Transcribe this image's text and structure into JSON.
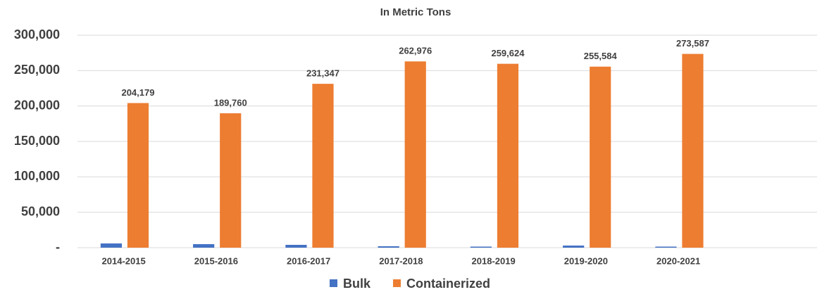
{
  "chart_data": {
    "type": "bar",
    "title": "In Metric Tons",
    "categories": [
      "2014-2015",
      "2015-2016",
      "2016-2017",
      "2017-2018",
      "2018-2019",
      "2019-2020",
      "2020-2021",
      null
    ],
    "series": [
      {
        "name": "Bulk",
        "color": "#4472c4",
        "values": [
          6000,
          5000,
          4000,
          2000,
          1500,
          3000,
          1500,
          null
        ]
      },
      {
        "name": "Containerized",
        "color": "#ed7d31",
        "values": [
          204179,
          189760,
          231347,
          262976,
          259624,
          255584,
          273587,
          null
        ],
        "value_labels": [
          "204,179",
          "189,760",
          "231,347",
          "262,976",
          "259,624",
          "255,584",
          "273,587",
          null
        ]
      }
    ],
    "ylim": [
      0,
      300000
    ],
    "yticks": [
      {
        "value": 0,
        "label": "-"
      },
      {
        "value": 50000,
        "label": "50,000"
      },
      {
        "value": 100000,
        "label": "100,000"
      },
      {
        "value": 150000,
        "label": "150,000"
      },
      {
        "value": 200000,
        "label": "200,000"
      },
      {
        "value": 250000,
        "label": "250,000"
      },
      {
        "value": 300000,
        "label": "300,000"
      }
    ],
    "grid": true,
    "legend": "bottom"
  }
}
